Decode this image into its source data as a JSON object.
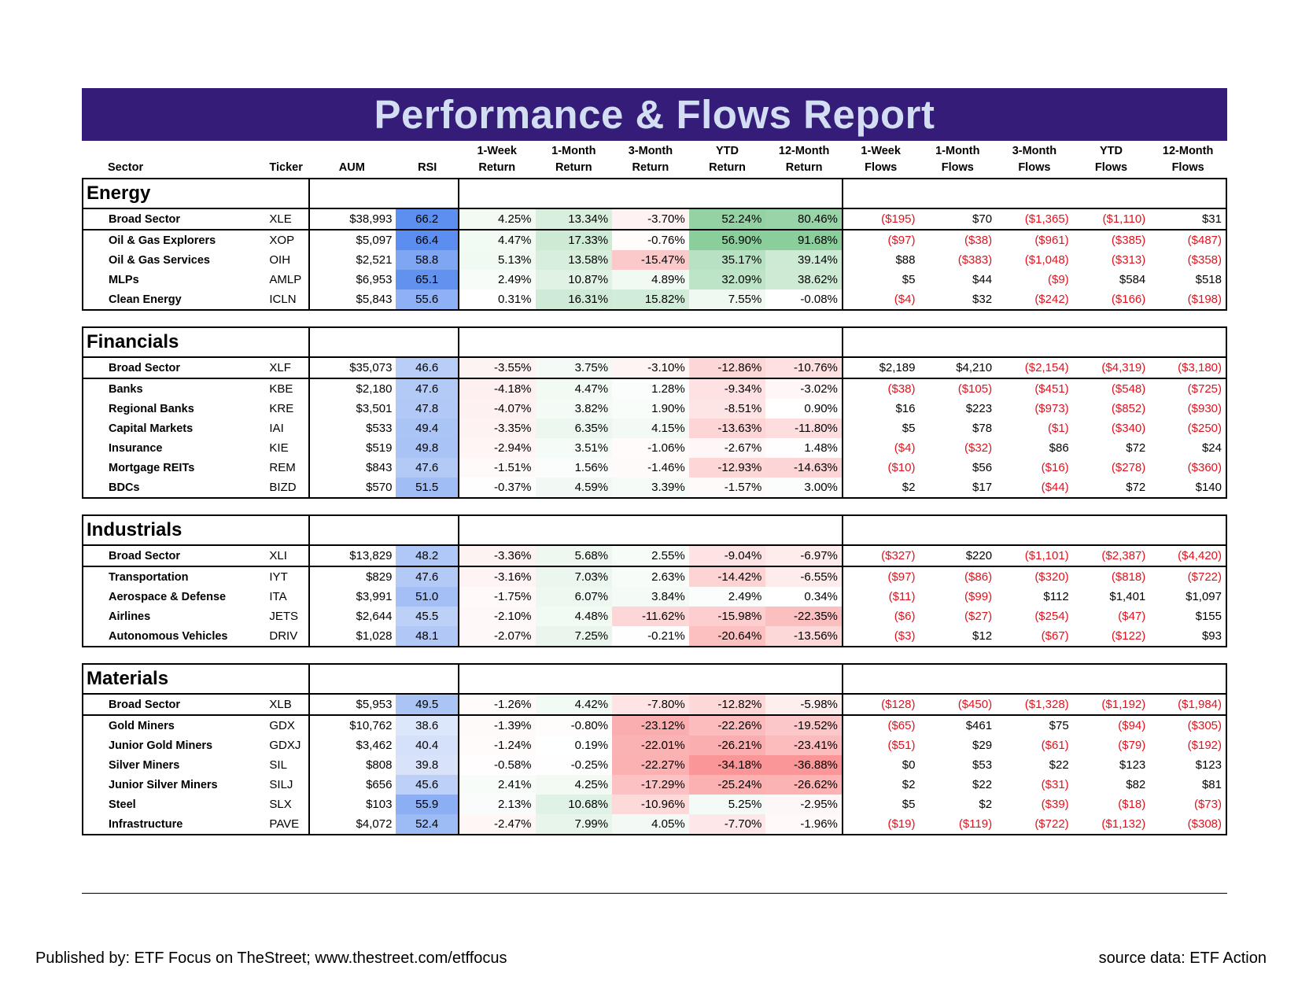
{
  "report": {
    "title": "Performance & Flows Report",
    "headers": {
      "sector": "Sector",
      "ticker": "Ticker",
      "aum": "AUM",
      "rsi": "RSI",
      "ret_1w": [
        "1-Week",
        "Return"
      ],
      "ret_1m": [
        "1-Month",
        "Return"
      ],
      "ret_3m": [
        "3-Month",
        "Return"
      ],
      "ret_ytd": [
        "YTD",
        "Return"
      ],
      "ret_12m": [
        "12-Month",
        "Return"
      ],
      "flow_1w": [
        "1-Week",
        "Flows"
      ],
      "flow_1m": [
        "1-Month",
        "Flows"
      ],
      "flow_3m": [
        "3-Month",
        "Flows"
      ],
      "flow_ytd": [
        "YTD",
        "Flows"
      ],
      "flow_12m": [
        "12-Month",
        "Flows"
      ]
    },
    "groups": [
      {
        "name": "Energy",
        "rows": [
          {
            "sector": "Broad Sector",
            "ticker": "XLE",
            "aum": "$38,993",
            "rsi": "66.2",
            "returns": [
              "4.25%",
              "13.34%",
              "-3.70%",
              "52.24%",
              "80.46%"
            ],
            "flows": [
              "($195)",
              "$70",
              "($1,365)",
              "($1,110)",
              "$31"
            ]
          },
          {
            "sector": "Oil & Gas Explorers",
            "ticker": "XOP",
            "aum": "$5,097",
            "rsi": "66.4",
            "returns": [
              "4.47%",
              "17.33%",
              "-0.76%",
              "56.90%",
              "91.68%"
            ],
            "flows": [
              "($97)",
              "($38)",
              "($961)",
              "($385)",
              "($487)"
            ]
          },
          {
            "sector": "Oil & Gas Services",
            "ticker": "OIH",
            "aum": "$2,521",
            "rsi": "58.8",
            "returns": [
              "5.13%",
              "13.58%",
              "-15.47%",
              "35.17%",
              "39.14%"
            ],
            "flows": [
              "$88",
              "($383)",
              "($1,048)",
              "($313)",
              "($358)"
            ]
          },
          {
            "sector": "MLPs",
            "ticker": "AMLP",
            "aum": "$6,953",
            "rsi": "65.1",
            "returns": [
              "2.49%",
              "10.87%",
              "4.89%",
              "32.09%",
              "38.62%"
            ],
            "flows": [
              "$5",
              "$44",
              "($9)",
              "$584",
              "$518"
            ]
          },
          {
            "sector": "Clean Energy",
            "ticker": "ICLN",
            "aum": "$5,843",
            "rsi": "55.6",
            "returns": [
              "0.31%",
              "16.31%",
              "15.82%",
              "7.55%",
              "-0.08%"
            ],
            "flows": [
              "($4)",
              "$32",
              "($242)",
              "($166)",
              "($198)"
            ]
          }
        ]
      },
      {
        "name": "Financials",
        "rows": [
          {
            "sector": "Broad Sector",
            "ticker": "XLF",
            "aum": "$35,073",
            "rsi": "46.6",
            "returns": [
              "-3.55%",
              "3.75%",
              "-3.10%",
              "-12.86%",
              "-10.76%"
            ],
            "flows": [
              "$2,189",
              "$4,210",
              "($2,154)",
              "($4,319)",
              "($3,180)"
            ]
          },
          {
            "sector": "Banks",
            "ticker": "KBE",
            "aum": "$2,180",
            "rsi": "47.6",
            "returns": [
              "-4.18%",
              "4.47%",
              "1.28%",
              "-9.34%",
              "-3.02%"
            ],
            "flows": [
              "($38)",
              "($105)",
              "($451)",
              "($548)",
              "($725)"
            ]
          },
          {
            "sector": "Regional Banks",
            "ticker": "KRE",
            "aum": "$3,501",
            "rsi": "47.8",
            "returns": [
              "-4.07%",
              "3.82%",
              "1.90%",
              "-8.51%",
              "0.90%"
            ],
            "flows": [
              "$16",
              "$223",
              "($973)",
              "($852)",
              "($930)"
            ]
          },
          {
            "sector": "Capital Markets",
            "ticker": "IAI",
            "aum": "$533",
            "rsi": "49.4",
            "returns": [
              "-3.35%",
              "6.35%",
              "4.15%",
              "-13.63%",
              "-11.80%"
            ],
            "flows": [
              "$5",
              "$78",
              "($1)",
              "($340)",
              "($250)"
            ]
          },
          {
            "sector": "Insurance",
            "ticker": "KIE",
            "aum": "$519",
            "rsi": "49.8",
            "returns": [
              "-2.94%",
              "3.51%",
              "-1.06%",
              "-2.67%",
              "1.48%"
            ],
            "flows": [
              "($4)",
              "($32)",
              "$86",
              "$72",
              "$24"
            ]
          },
          {
            "sector": "Mortgage REITs",
            "ticker": "REM",
            "aum": "$843",
            "rsi": "47.6",
            "returns": [
              "-1.51%",
              "1.56%",
              "-1.46%",
              "-12.93%",
              "-14.63%"
            ],
            "flows": [
              "($10)",
              "$56",
              "($16)",
              "($278)",
              "($360)"
            ]
          },
          {
            "sector": "BDCs",
            "ticker": "BIZD",
            "aum": "$570",
            "rsi": "51.5",
            "returns": [
              "-0.37%",
              "4.59%",
              "3.39%",
              "-1.57%",
              "3.00%"
            ],
            "flows": [
              "$2",
              "$17",
              "($44)",
              "$72",
              "$140"
            ]
          }
        ]
      },
      {
        "name": "Industrials",
        "rows": [
          {
            "sector": "Broad Sector",
            "ticker": "XLI",
            "aum": "$13,829",
            "rsi": "48.2",
            "returns": [
              "-3.36%",
              "5.68%",
              "2.55%",
              "-9.04%",
              "-6.97%"
            ],
            "flows": [
              "($327)",
              "$220",
              "($1,101)",
              "($2,387)",
              "($4,420)"
            ]
          },
          {
            "sector": "Transportation",
            "ticker": "IYT",
            "aum": "$829",
            "rsi": "47.6",
            "returns": [
              "-3.16%",
              "7.03%",
              "2.63%",
              "-14.42%",
              "-6.55%"
            ],
            "flows": [
              "($97)",
              "($86)",
              "($320)",
              "($818)",
              "($722)"
            ]
          },
          {
            "sector": "Aerospace & Defense",
            "ticker": "ITA",
            "aum": "$3,991",
            "rsi": "51.0",
            "returns": [
              "-1.75%",
              "6.07%",
              "3.84%",
              "2.49%",
              "0.34%"
            ],
            "flows": [
              "($11)",
              "($99)",
              "$112",
              "$1,401",
              "$1,097"
            ]
          },
          {
            "sector": "Airlines",
            "ticker": "JETS",
            "aum": "$2,644",
            "rsi": "45.5",
            "returns": [
              "-2.10%",
              "4.48%",
              "-11.62%",
              "-15.98%",
              "-22.35%"
            ],
            "flows": [
              "($6)",
              "($27)",
              "($254)",
              "($47)",
              "$155"
            ]
          },
          {
            "sector": "Autonomous Vehicles",
            "ticker": "DRIV",
            "aum": "$1,028",
            "rsi": "48.1",
            "returns": [
              "-2.07%",
              "7.25%",
              "-0.21%",
              "-20.64%",
              "-13.56%"
            ],
            "flows": [
              "($3)",
              "$12",
              "($67)",
              "($122)",
              "$93"
            ]
          }
        ]
      },
      {
        "name": "Materials",
        "rows": [
          {
            "sector": "Broad Sector",
            "ticker": "XLB",
            "aum": "$5,953",
            "rsi": "49.5",
            "returns": [
              "-1.26%",
              "4.42%",
              "-7.80%",
              "-12.82%",
              "-5.98%"
            ],
            "flows": [
              "($128)",
              "($450)",
              "($1,328)",
              "($1,192)",
              "($1,984)"
            ]
          },
          {
            "sector": "Gold Miners",
            "ticker": "GDX",
            "aum": "$10,762",
            "rsi": "38.6",
            "returns": [
              "-1.39%",
              "-0.80%",
              "-23.12%",
              "-22.26%",
              "-19.52%"
            ],
            "flows": [
              "($65)",
              "$461",
              "$75",
              "($94)",
              "($305)"
            ]
          },
          {
            "sector": "Junior Gold Miners",
            "ticker": "GDXJ",
            "aum": "$3,462",
            "rsi": "40.4",
            "returns": [
              "-1.24%",
              "0.19%",
              "-22.01%",
              "-26.21%",
              "-23.41%"
            ],
            "flows": [
              "($51)",
              "$29",
              "($61)",
              "($79)",
              "($192)"
            ]
          },
          {
            "sector": "Silver Miners",
            "ticker": "SIL",
            "aum": "$808",
            "rsi": "39.8",
            "returns": [
              "-0.58%",
              "-0.25%",
              "-22.27%",
              "-34.18%",
              "-36.88%"
            ],
            "flows": [
              "$0",
              "$53",
              "$22",
              "$123",
              "$123"
            ]
          },
          {
            "sector": "Junior Silver Miners",
            "ticker": "SILJ",
            "aum": "$656",
            "rsi": "45.6",
            "returns": [
              "2.41%",
              "4.25%",
              "-17.29%",
              "-25.24%",
              "-26.62%"
            ],
            "flows": [
              "$2",
              "$22",
              "($31)",
              "$82",
              "$81"
            ]
          },
          {
            "sector": "Steel",
            "ticker": "SLX",
            "aum": "$103",
            "rsi": "55.9",
            "returns": [
              "2.13%",
              "10.68%",
              "-10.96%",
              "5.25%",
              "-2.95%"
            ],
            "flows": [
              "$5",
              "$2",
              "($39)",
              "($18)",
              "($73)"
            ]
          },
          {
            "sector": "Infrastructure",
            "ticker": "PAVE",
            "aum": "$4,072",
            "rsi": "52.4",
            "returns": [
              "-2.47%",
              "7.99%",
              "4.05%",
              "-7.70%",
              "-1.96%"
            ],
            "flows": [
              "($19)",
              "($119)",
              "($722)",
              "($1,132)",
              "($308)"
            ]
          }
        ]
      }
    ],
    "colors": {
      "banner_bg": "#341c78",
      "banner_text": "#d3def3",
      "negative_flow": "#e0121e",
      "positive_return": "#63be7b",
      "negative_return": "#f8696b",
      "rsi_strong": "#5b8ef0",
      "rsi_weak": "#ffffff"
    }
  },
  "footer": {
    "published": "Published by: ETF Focus on TheStreet; www.thestreet.com/etffocus",
    "source": "source data: ETF Action"
  }
}
